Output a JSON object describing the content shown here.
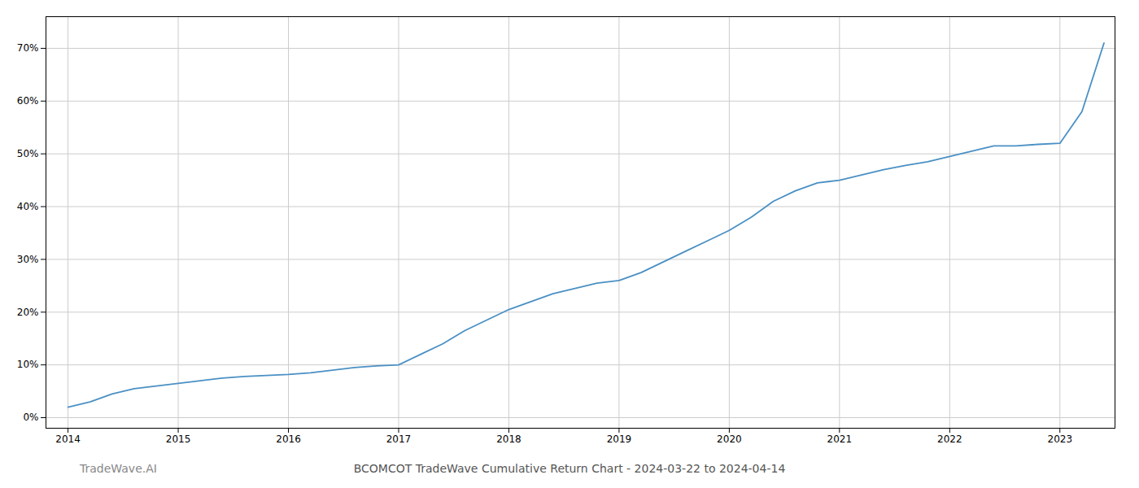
{
  "chart_data": {
    "type": "line",
    "title": "BCOMCOT TradeWave Cumulative Return Chart - 2024-03-22 to 2024-04-14",
    "annotations": [
      "TradeWave.AI"
    ],
    "x": [
      2014.0,
      2014.2,
      2014.4,
      2014.6,
      2014.8,
      2015.0,
      2015.2,
      2015.4,
      2015.6,
      2015.8,
      2016.0,
      2016.2,
      2016.4,
      2016.6,
      2016.8,
      2017.0,
      2017.2,
      2017.4,
      2017.6,
      2017.8,
      2018.0,
      2018.2,
      2018.4,
      2018.6,
      2018.8,
      2019.0,
      2019.2,
      2019.4,
      2019.6,
      2019.8,
      2020.0,
      2020.2,
      2020.4,
      2020.6,
      2020.8,
      2021.0,
      2021.2,
      2021.4,
      2021.6,
      2021.8,
      2022.0,
      2022.2,
      2022.4,
      2022.6,
      2022.8,
      2023.0,
      2023.2,
      2023.4
    ],
    "values": [
      2.0,
      3.0,
      4.5,
      5.5,
      6.0,
      6.5,
      7.0,
      7.5,
      7.8,
      8.0,
      8.2,
      8.5,
      9.0,
      9.5,
      9.8,
      10.0,
      12.0,
      14.0,
      16.5,
      18.5,
      20.5,
      22.0,
      23.5,
      24.5,
      25.5,
      26.0,
      27.5,
      29.5,
      31.5,
      33.5,
      35.5,
      38.0,
      41.0,
      43.0,
      44.5,
      45.0,
      46.0,
      47.0,
      47.8,
      48.5,
      49.5,
      50.5,
      51.5,
      51.5,
      51.8,
      52.0,
      58.0,
      71.0
    ],
    "color": "#4a90c4",
    "xlim": [
      2013.8,
      2023.5
    ],
    "xticks": [
      2014,
      2015,
      2016,
      2017,
      2018,
      2019,
      2020,
      2021,
      2022,
      2023
    ],
    "ylim": [
      -2,
      76
    ],
    "yticks": [
      {
        "value": 0,
        "label": "0%"
      },
      {
        "value": 10,
        "label": "10%"
      },
      {
        "value": 20,
        "label": "20%"
      },
      {
        "value": 30,
        "label": "30%"
      },
      {
        "value": 40,
        "label": "40%"
      },
      {
        "value": 50,
        "label": "50%"
      },
      {
        "value": 60,
        "label": "60%"
      },
      {
        "value": 70,
        "label": "70%"
      }
    ],
    "grid": true
  }
}
